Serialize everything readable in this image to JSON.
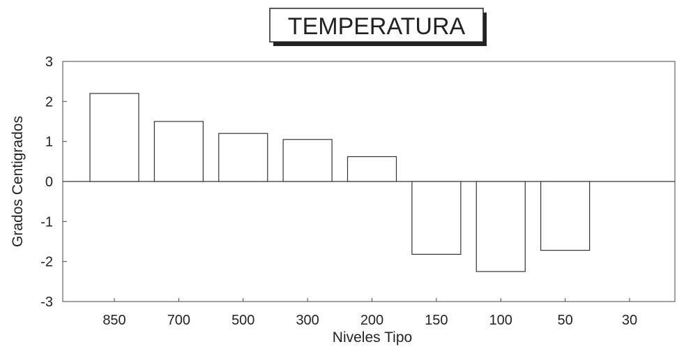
{
  "chart_data": {
    "type": "bar",
    "title": "TEMPERATURA",
    "xlabel": "Niveles Tipo",
    "ylabel": "Grados Centigrados",
    "categories": [
      "850",
      "700",
      "500",
      "300",
      "200",
      "150",
      "100",
      "50",
      "30"
    ],
    "values": [
      2.2,
      1.5,
      1.2,
      1.05,
      0.62,
      -1.82,
      -2.25,
      -1.72,
      null
    ],
    "ylim": [
      -3,
      3
    ],
    "yticks": [
      "3",
      "2",
      "1",
      "0",
      "-1",
      "-2",
      "-3"
    ],
    "ytick_values": [
      3,
      2,
      1,
      0,
      -1,
      -2,
      -3
    ],
    "grid": false,
    "bar_fill": "#ffffff",
    "bar_stroke": "#333333"
  }
}
